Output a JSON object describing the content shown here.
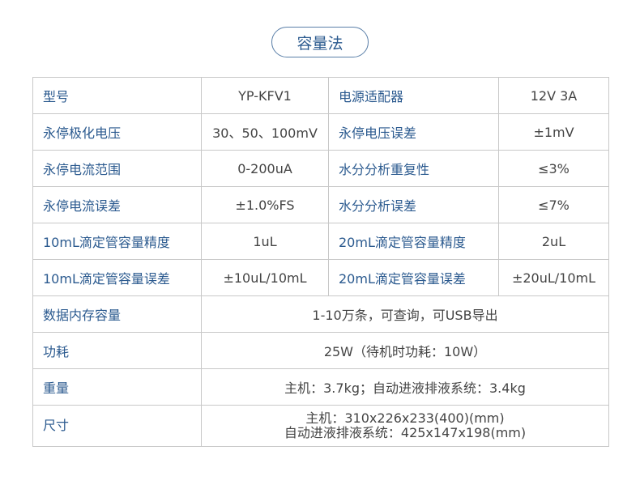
{
  "title": "容量法",
  "pair_rows": [
    [
      "型号",
      "YP-KFV1",
      "电源适配器",
      "12V 3A"
    ],
    [
      "永停极化电压",
      "30、50、100mV",
      "永停电压误差",
      "±1mV"
    ],
    [
      "永停电流范围",
      "0-200uA",
      "水分分析重复性",
      "≤3%"
    ],
    [
      "永停电流误差",
      "±1.0%FS",
      "水分分析误差",
      "≤7%"
    ],
    [
      "10mL滴定管容量精度",
      "1uL",
      "20mL滴定管容量精度",
      "2uL"
    ],
    [
      "10mL滴定管容量误差",
      "±10uL/10mL",
      "20mL滴定管容量误差",
      "±20uL/10mL"
    ]
  ],
  "wide_rows": [
    {
      "label": "数据内存容量",
      "value": "1-10万条，可查询，可USB导出"
    },
    {
      "label": "功耗",
      "value": "25W（待机时功耗：10W）"
    },
    {
      "label": "重量",
      "value": "主机：3.7kg；自动进液排液系统：3.4kg"
    }
  ],
  "size_row": {
    "label": "尺寸",
    "line1": "主机：310x226x233(400)(mm)",
    "line2": "自动进液排液系统：425x147x198(mm)"
  }
}
